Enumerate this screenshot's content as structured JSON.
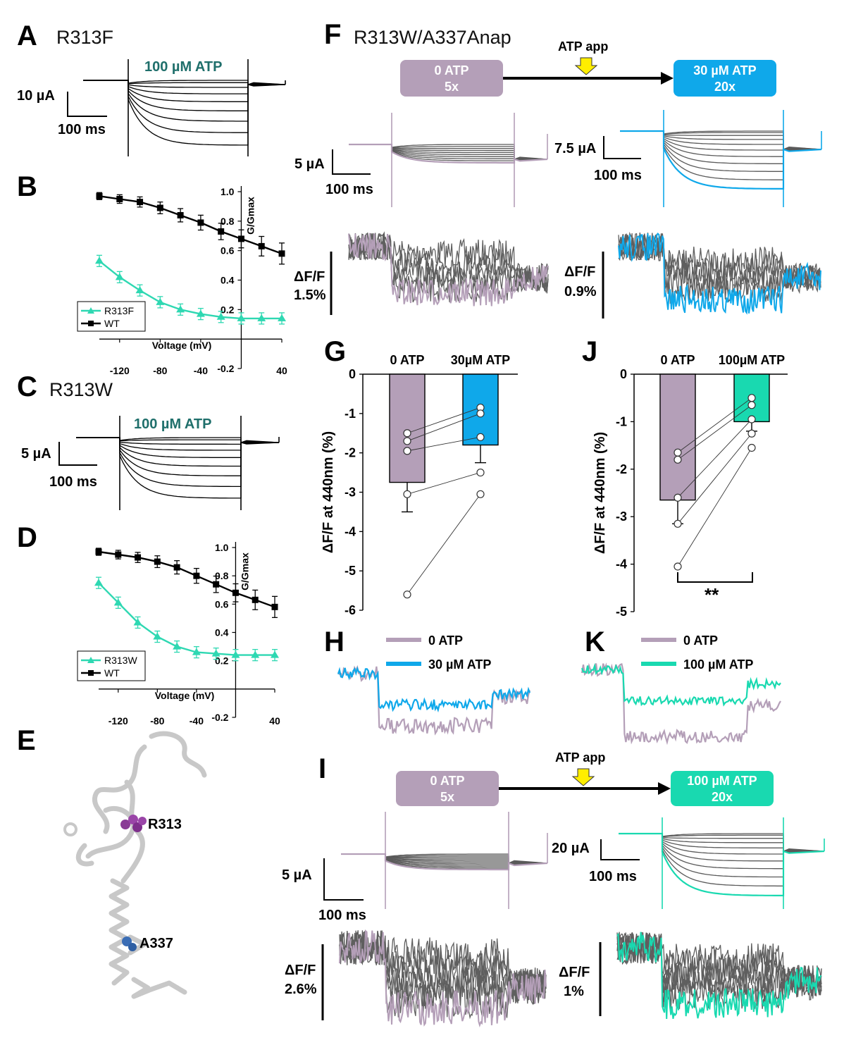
{
  "panels": {
    "A": {
      "letter": "A",
      "title": "R313F",
      "atp": "100 µM ATP",
      "scale_y": "10 µA",
      "scale_x": "100 ms"
    },
    "B": {
      "letter": "B"
    },
    "C": {
      "letter": "C",
      "title": "R313W",
      "atp": "100 µM ATP",
      "scale_y": "5 µA",
      "scale_x": "100 ms"
    },
    "D": {
      "letter": "D"
    },
    "E": {
      "letter": "E",
      "label1": "R313",
      "label2": "A337"
    },
    "F": {
      "letter": "F",
      "title": "R313W/A337Anap",
      "app": "ATP app",
      "box1_l1": "0 ATP",
      "box1_l2": "5x",
      "box2_l1": "30 µM ATP",
      "box2_l2": "20x",
      "scale1_y": "5 µA",
      "scale1_x": "100 ms",
      "scale2_y": "7.5 µA",
      "scale2_x": "100 ms",
      "df1_a": "ΔF/F",
      "df1_b": "1.5%",
      "df2_a": "ΔF/F",
      "df2_b": "0.9%"
    },
    "G": {
      "letter": "G"
    },
    "H": {
      "letter": "H",
      "leg1": "0 ATP",
      "leg2": "30 µM ATP"
    },
    "I": {
      "letter": "I",
      "app": "ATP app",
      "box1_l1": "0 ATP",
      "box1_l2": "5x",
      "box2_l1": "100 µM ATP",
      "box2_l2": "20x",
      "scale1_y": "5 µA",
      "scale1_x": "100 ms",
      "scale2_y": "20 µA",
      "scale2_x": "100 ms",
      "df1_a": "ΔF/F",
      "df1_b": "2.6%",
      "df2_a": "ΔF/F",
      "df2_b": "1%"
    },
    "J": {
      "letter": "J",
      "sig": "**"
    },
    "K": {
      "letter": "K",
      "leg1": "0 ATP",
      "leg2": "100 µM ATP"
    }
  },
  "colors": {
    "mauve": "#b49fb8",
    "blue": "#0fa8ea",
    "teal": "#19d9b0",
    "gv_teal": "#2ed8b2",
    "gray": "#5a5a5a",
    "atp_text": "#1f6f6b",
    "arrow": "#ffee00"
  },
  "chart_data": [
    {
      "panel": "B",
      "type": "line",
      "xlabel": "Voltage (mV)",
      "ylabel": "G/Gmax",
      "xticks": [
        "-120",
        "-80",
        "-40",
        "40"
      ],
      "yticks": [
        "1.0",
        "0.8",
        "0.6",
        "0.4",
        "0.2",
        "-0.2"
      ],
      "xlim": [
        -140,
        40
      ],
      "ylim": [
        -0.2,
        1.0
      ],
      "x": [
        -140,
        -120,
        -100,
        -80,
        -60,
        -40,
        -20,
        0,
        20,
        40
      ],
      "series": [
        {
          "name": "R313F",
          "marker": "triangle",
          "values": [
            0.53,
            0.42,
            0.33,
            0.25,
            0.2,
            0.17,
            0.15,
            0.14,
            0.14,
            0.14
          ]
        },
        {
          "name": "WT",
          "marker": "square",
          "values": [
            0.97,
            0.95,
            0.93,
            0.89,
            0.84,
            0.79,
            0.73,
            0.68,
            0.63,
            0.58
          ]
        }
      ]
    },
    {
      "panel": "D",
      "type": "line",
      "xlabel": "Voltage (mV)",
      "ylabel": "G/Gmax",
      "xticks": [
        "-120",
        "-80",
        "-40",
        "40"
      ],
      "yticks": [
        "1.0",
        "0.8",
        "0.6",
        "0.4",
        "0.2",
        "-0.2"
      ],
      "xlim": [
        -140,
        40
      ],
      "ylim": [
        -0.2,
        1.0
      ],
      "x": [
        -140,
        -120,
        -100,
        -80,
        -60,
        -40,
        -20,
        0,
        20,
        40
      ],
      "series": [
        {
          "name": "R313W",
          "marker": "triangle",
          "values": [
            0.75,
            0.61,
            0.47,
            0.37,
            0.3,
            0.26,
            0.25,
            0.24,
            0.24,
            0.24
          ]
        },
        {
          "name": "WT",
          "marker": "square",
          "values": [
            0.97,
            0.95,
            0.93,
            0.9,
            0.86,
            0.8,
            0.74,
            0.68,
            0.63,
            0.58
          ]
        }
      ]
    },
    {
      "panel": "G",
      "type": "bar",
      "categories": [
        "0 ATP",
        "30µM ATP"
      ],
      "values": [
        -2.75,
        -1.8
      ],
      "errors": [
        0.75,
        0.45
      ],
      "ylabel": "ΔF/F at 440nm (%)",
      "yticks": [
        "0",
        "-1",
        "-2",
        "-3",
        "-4",
        "-5",
        "-6"
      ],
      "ylim": [
        -6,
        0
      ],
      "pairs": [
        [
          -1.5,
          -0.85
        ],
        [
          -1.7,
          -1.0
        ],
        [
          -1.95,
          -1.6
        ],
        [
          -3.05,
          -2.5
        ],
        [
          -5.6,
          -3.05
        ]
      ]
    },
    {
      "panel": "J",
      "type": "bar",
      "categories": [
        "0 ATP",
        "100µM ATP"
      ],
      "values": [
        -2.65,
        -1.0
      ],
      "errors": [
        0.5,
        0.2
      ],
      "ylabel": "ΔF/F at 440nm (%)",
      "yticks": [
        "0",
        "-1",
        "-2",
        "-3",
        "-4",
        "-5"
      ],
      "ylim": [
        -5,
        0
      ],
      "pairs": [
        [
          -1.65,
          -0.5
        ],
        [
          -1.8,
          -0.65
        ],
        [
          -2.6,
          -0.95
        ],
        [
          -3.15,
          -1.25
        ],
        [
          -4.05,
          -1.55
        ]
      ]
    }
  ]
}
